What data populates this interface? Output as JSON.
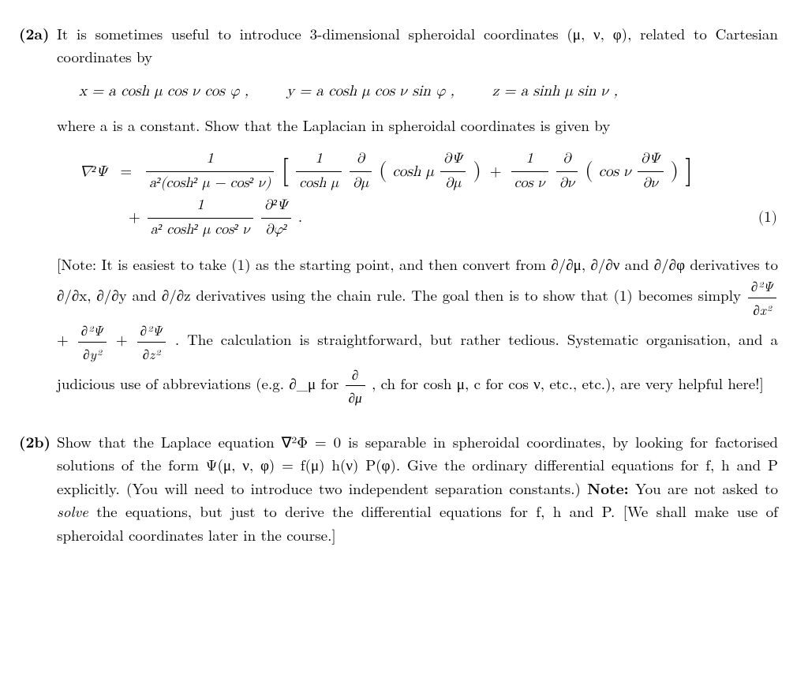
{
  "typography": {
    "body_font": "Latin Modern Roman / Computer Modern",
    "body_fontsize_pt": 14,
    "line_height": 1.55,
    "text_color": "#000000",
    "background_color": "#ffffff",
    "label_weight": "bold",
    "justify": true
  },
  "p2a": {
    "label": "(2a)",
    "intro": "It is sometimes useful to introduce 3-dimensional spheroidal coordinates (μ, ν, φ), related to Cartesian coordinates by",
    "coord_eq_x": "x = a cosh μ  cos ν  cos φ ,",
    "coord_eq_y": "y = a cosh μ  cos ν  sin φ ,",
    "coord_eq_z": "z = a sinh μ  sin ν ,",
    "mid": "where a is a constant. Show that the Laplacian in spheroidal coordinates is given by",
    "laplacian": {
      "lhs": "∇²Ψ",
      "line1_prefix": "=",
      "frac1_num": "1",
      "frac1_den": "a²(cosh² μ − cos² ν)",
      "br_open": "[",
      "frac2_num": "1",
      "frac2_den": "cosh μ",
      "d_dmu": "∂",
      "d_dmu_den": "∂μ",
      "inner1": "cosh μ",
      "dpsi_dmu_num": "∂Ψ",
      "dpsi_dmu_den": "∂μ",
      "plus1": "+",
      "frac3_num": "1",
      "frac3_den": "cos ν",
      "d_dnu": "∂",
      "d_dnu_den": "∂ν",
      "inner2": "cos ν",
      "dpsi_dnu_num": "∂Ψ",
      "dpsi_dnu_den": "∂ν",
      "br_close": "]",
      "line2_plus": "+",
      "frac4_num": "1",
      "frac4_den": "a² cosh² μ cos² ν",
      "d2psi_num": "∂²Ψ",
      "d2psi_den": "∂φ²",
      "period": ".",
      "eqnum": "(1)"
    },
    "note": "[Note: It is easiest to take (1) as the starting point, and then convert from ∂/∂μ, ∂/∂ν and ∂/∂φ derivatives to ∂/∂x, ∂/∂y and ∂/∂z derivatives using the chain rule. The goal then is to show that (1) becomes simply ",
    "note_eq1_n": "∂²Ψ",
    "note_eq1_d": "∂x²",
    "note_plus1": " + ",
    "note_eq2_n": "∂²Ψ",
    "note_eq2_d": "∂y²",
    "note_plus2": " + ",
    "note_eq3_n": "∂²Ψ",
    "note_eq3_d": "∂z²",
    "note_tail": ". The calculation is straightforward, but rather tedious. Systematic organisation, and a judicious use of abbreviations (e.g. ∂_μ for ",
    "note_abbr_n": "∂",
    "note_abbr_d": "∂μ",
    "note_tail2": ", ch for cosh μ, c for cos ν, etc., etc.), are very helpful here!]"
  },
  "p2b": {
    "label": "(2b)",
    "text1": "Show that the Laplace equation ∇²Φ = 0 is separable in spheroidal coordinates, by looking for factorised solutions of the form Ψ(μ, ν, φ) = f(μ) h(ν) P(φ). Give the ordinary differential equations for f, h and P explicitly. (You will need to introduce two independent separation constants.) ",
    "note_bold": "Note:",
    "text2": " You are not asked to ",
    "solve_it": "solve",
    "text3": " the equations, but just to derive the differential equations for f, h and P. [We shall make use of spheroidal coordinates later in the course.]"
  }
}
